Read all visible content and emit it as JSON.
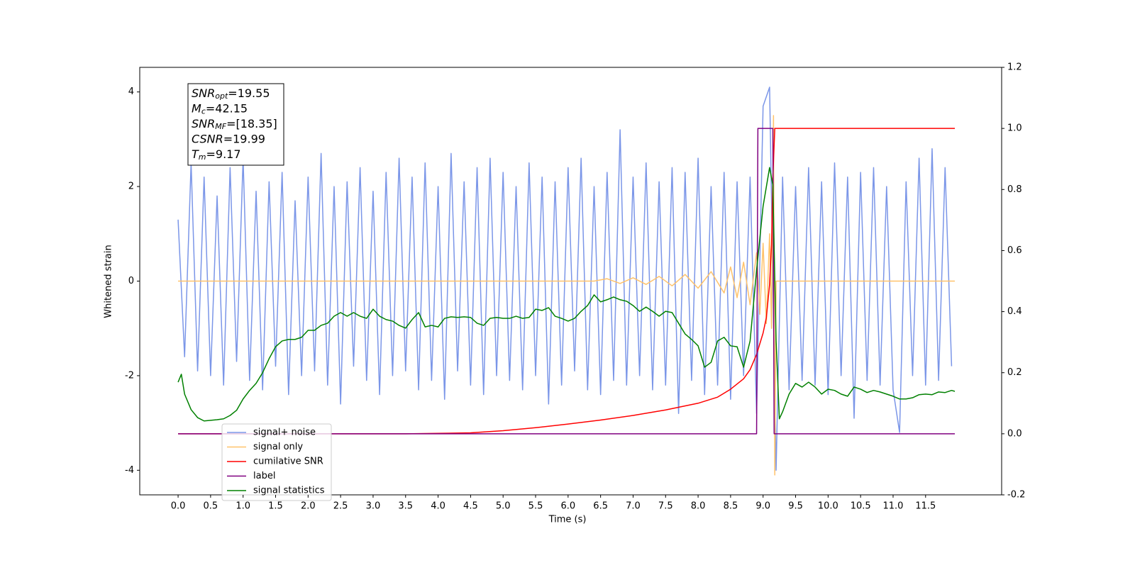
{
  "chart_data": {
    "type": "line",
    "xlabel": "Time (s)",
    "ylabel": "Whitened strain",
    "xlim": [
      -0.59,
      12.67
    ],
    "ylim": [
      -4.52,
      4.52
    ],
    "y2lim": [
      -0.2,
      1.2
    ],
    "xticks": [
      {
        "value": 0,
        "label": "0.0"
      },
      0.5,
      {
        "value": 1,
        "label": "1.0"
      },
      1.5,
      {
        "value": 2,
        "label": "2.0"
      },
      2.5,
      {
        "value": 3,
        "label": "3.0"
      },
      3.5,
      {
        "value": 4,
        "label": "4.0"
      },
      4.5,
      {
        "value": 5,
        "label": "5.0"
      },
      5.5,
      {
        "value": 6,
        "label": "6.0"
      },
      6.5,
      {
        "value": 7,
        "label": "7.0"
      },
      7.5,
      {
        "value": 8,
        "label": "8.0"
      },
      8.5,
      {
        "value": 9,
        "label": "9.0"
      },
      9.5,
      {
        "value": 10,
        "label": "10.0"
      },
      10.5,
      {
        "value": 11,
        "label": "11.0"
      },
      11.5
    ],
    "yticks": [
      -4,
      -2,
      0,
      2,
      4
    ],
    "y2ticks": [
      -0.2,
      {
        "value": 0,
        "label": "0.0"
      },
      0.2,
      0.4,
      0.6,
      0.8,
      {
        "value": 1,
        "label": "1.0"
      },
      1.2
    ],
    "annotation": [
      {
        "name": "SNR",
        "sub": "opt",
        "text": "=19.55"
      },
      {
        "name": "M",
        "sub": "c",
        "text": "=42.15"
      },
      {
        "name": "SNR",
        "sub": "MF",
        "text": "=[18.35]"
      },
      {
        "name": "CSNR",
        "sub": null,
        "text": "=19.99"
      },
      {
        "name": "T",
        "sub": "m",
        "text": "=9.17"
      }
    ],
    "series": [
      {
        "name": "signal+ noise",
        "color": "#7b96e8",
        "x": [
          0,
          0.1,
          0.2,
          0.3,
          0.4,
          0.5,
          0.6,
          0.7,
          0.8,
          0.9,
          1,
          1.1,
          1.2,
          1.3,
          1.4,
          1.5,
          1.6,
          1.7,
          1.8,
          1.9,
          2,
          2.1,
          2.2,
          2.3,
          2.4,
          2.5,
          2.6,
          2.7,
          2.8,
          2.9,
          3,
          3.1,
          3.2,
          3.3,
          3.4,
          3.5,
          3.6,
          3.7,
          3.8,
          3.9,
          4,
          4.1,
          4.2,
          4.3,
          4.4,
          4.5,
          4.6,
          4.7,
          4.8,
          4.9,
          5,
          5.1,
          5.2,
          5.3,
          5.4,
          5.5,
          5.6,
          5.7,
          5.8,
          5.9,
          6,
          6.1,
          6.2,
          6.3,
          6.4,
          6.5,
          6.6,
          6.7,
          6.8,
          6.9,
          7,
          7.1,
          7.2,
          7.3,
          7.4,
          7.5,
          7.6,
          7.7,
          7.8,
          7.9,
          8,
          8.1,
          8.2,
          8.3,
          8.4,
          8.5,
          8.6,
          8.7,
          8.8,
          8.9,
          9,
          9.1,
          9.2,
          9.3,
          9.4,
          9.5,
          9.6,
          9.7,
          9.8,
          9.9,
          10,
          10.1,
          10.2,
          10.3,
          10.4,
          10.5,
          10.6,
          10.7,
          10.8,
          10.9,
          11,
          11.1,
          11.2,
          11.3,
          11.4,
          11.5,
          11.6,
          11.7,
          11.8,
          11.9
        ],
        "values": [
          1.3,
          -1.6,
          2.5,
          -1.9,
          2.2,
          -2.0,
          1.8,
          -2.2,
          2.4,
          -1.7,
          2.6,
          -2.1,
          1.9,
          -2.3,
          2.1,
          -1.8,
          2.3,
          -2.4,
          1.7,
          -2.0,
          2.2,
          -1.9,
          2.7,
          -2.2,
          2.0,
          -2.6,
          2.1,
          -1.8,
          2.4,
          -2.1,
          1.9,
          -2.4,
          2.3,
          -2.0,
          2.6,
          -1.9,
          2.2,
          -2.3,
          2.5,
          -2.1,
          2.0,
          -2.5,
          2.7,
          -1.9,
          2.1,
          -2.2,
          2.4,
          -2.4,
          2.6,
          -2.0,
          2.3,
          -2.1,
          2.0,
          -2.3,
          2.5,
          -2.0,
          2.2,
          -2.6,
          2.1,
          -2.2,
          2.4,
          -1.9,
          2.6,
          -2.3,
          2.0,
          -2.4,
          2.3,
          -2.1,
          3.2,
          -2.2,
          2.2,
          -2.0,
          2.5,
          -2.3,
          2.1,
          -2.2,
          2.4,
          -2.8,
          2.3,
          -2.1,
          2.6,
          -2.4,
          2.0,
          -2.2,
          2.3,
          -2.5,
          2.1,
          -2.0,
          2.2,
          -2.8,
          3.7,
          4.1,
          -4.0,
          2.2,
          -2.3,
          2.0,
          -2.1,
          2.4,
          -2.2,
          2.1,
          -2.4,
          2.5,
          -2.0,
          2.2,
          -2.9,
          2.3,
          -2.1,
          2.4,
          -2.2,
          2.0,
          -2.3,
          -3.2,
          2.1,
          -2.0,
          2.6,
          -2.2,
          2.8,
          -2.1,
          2.4,
          -1.8
        ]
      },
      {
        "name": "signal only",
        "color": "#ffc26b",
        "x": [
          0,
          6.4,
          6.6,
          6.8,
          7.0,
          7.2,
          7.4,
          7.6,
          7.8,
          8.0,
          8.2,
          8.4,
          8.5,
          8.6,
          8.7,
          8.8,
          8.9,
          8.95,
          9.0,
          9.05,
          9.1,
          9.13,
          9.16,
          9.18,
          9.2,
          11.95
        ],
        "values": [
          0,
          0,
          0.05,
          -0.05,
          0.07,
          -0.07,
          0.1,
          -0.1,
          0.14,
          -0.15,
          0.2,
          -0.25,
          0.3,
          -0.35,
          0.4,
          -0.5,
          0.6,
          -0.7,
          0.8,
          -0.9,
          1.0,
          -1.0,
          3.5,
          -4.1,
          0,
          0
        ]
      },
      {
        "name": "cumilative SNR",
        "color": "#ff0000",
        "axis": "y2",
        "x": [
          0,
          3.5,
          4.5,
          5.0,
          5.5,
          6.0,
          6.5,
          7.0,
          7.5,
          8.0,
          8.3,
          8.5,
          8.7,
          8.8,
          8.9,
          9.0,
          9.05,
          9.1,
          9.13,
          9.15,
          9.18,
          11.95
        ],
        "values": [
          0,
          0,
          0.003,
          0.01,
          0.02,
          0.032,
          0.045,
          0.06,
          0.078,
          0.1,
          0.12,
          0.146,
          0.18,
          0.21,
          0.26,
          0.33,
          0.38,
          0.49,
          0.62,
          0.84,
          1.0,
          1.0
        ]
      },
      {
        "name": "label",
        "color": "#800080",
        "axis": "y2",
        "x": [
          0,
          8.9,
          8.92,
          9.15,
          9.17,
          11.95
        ],
        "values": [
          0,
          0,
          1,
          1,
          0,
          0
        ]
      },
      {
        "name": "signal statistics",
        "color": "#008000",
        "axis": "y2",
        "x": [
          0,
          0.05,
          0.1,
          0.2,
          0.3,
          0.4,
          0.5,
          0.6,
          0.7,
          0.8,
          0.9,
          1,
          1.1,
          1.2,
          1.3,
          1.4,
          1.5,
          1.6,
          1.7,
          1.8,
          1.9,
          2,
          2.1,
          2.2,
          2.3,
          2.4,
          2.5,
          2.6,
          2.7,
          2.8,
          2.9,
          3,
          3.1,
          3.2,
          3.3,
          3.4,
          3.5,
          3.6,
          3.7,
          3.8,
          3.9,
          4,
          4.1,
          4.2,
          4.3,
          4.4,
          4.5,
          4.6,
          4.7,
          4.8,
          4.9,
          5,
          5.1,
          5.2,
          5.3,
          5.4,
          5.5,
          5.6,
          5.7,
          5.8,
          5.9,
          6,
          6.1,
          6.2,
          6.3,
          6.4,
          6.5,
          6.6,
          6.7,
          6.8,
          6.9,
          7,
          7.1,
          7.2,
          7.3,
          7.4,
          7.5,
          7.6,
          7.7,
          7.8,
          7.9,
          8,
          8.1,
          8.2,
          8.3,
          8.4,
          8.5,
          8.6,
          8.7,
          8.8,
          8.9,
          9,
          9.1,
          9.15,
          9.2,
          9.25,
          9.3,
          9.4,
          9.5,
          9.6,
          9.7,
          9.8,
          9.9,
          10,
          10.1,
          10.2,
          10.3,
          10.4,
          10.5,
          10.6,
          10.7,
          10.8,
          10.9,
          11,
          11.1,
          11.2,
          11.3,
          11.4,
          11.5,
          11.6,
          11.7,
          11.8,
          11.9,
          11.95
        ],
        "values": [
          0.169,
          0.195,
          0.13,
          0.079,
          0.053,
          0.042,
          0.044,
          0.046,
          0.049,
          0.06,
          0.077,
          0.114,
          0.142,
          0.165,
          0.2,
          0.246,
          0.285,
          0.304,
          0.309,
          0.309,
          0.316,
          0.339,
          0.339,
          0.355,
          0.362,
          0.385,
          0.397,
          0.385,
          0.397,
          0.385,
          0.378,
          0.408,
          0.385,
          0.374,
          0.369,
          0.355,
          0.346,
          0.374,
          0.397,
          0.35,
          0.355,
          0.35,
          0.378,
          0.383,
          0.381,
          0.383,
          0.381,
          0.362,
          0.355,
          0.378,
          0.381,
          0.378,
          0.378,
          0.385,
          0.378,
          0.381,
          0.408,
          0.404,
          0.413,
          0.385,
          0.378,
          0.369,
          0.378,
          0.401,
          0.42,
          0.455,
          0.432,
          0.439,
          0.448,
          0.439,
          0.434,
          0.42,
          0.401,
          0.415,
          0.401,
          0.385,
          0.401,
          0.397,
          0.362,
          0.327,
          0.309,
          0.288,
          0.218,
          0.234,
          0.304,
          0.316,
          0.288,
          0.285,
          0.218,
          0.304,
          0.536,
          0.745,
          0.872,
          0.814,
          0.304,
          0.049,
          0.072,
          0.13,
          0.165,
          0.153,
          0.169,
          0.153,
          0.13,
          0.146,
          0.142,
          0.13,
          0.123,
          0.153,
          0.146,
          0.135,
          0.142,
          0.137,
          0.13,
          0.123,
          0.114,
          0.114,
          0.118,
          0.128,
          0.13,
          0.128,
          0.137,
          0.135,
          0.142,
          0.139
        ]
      }
    ]
  }
}
